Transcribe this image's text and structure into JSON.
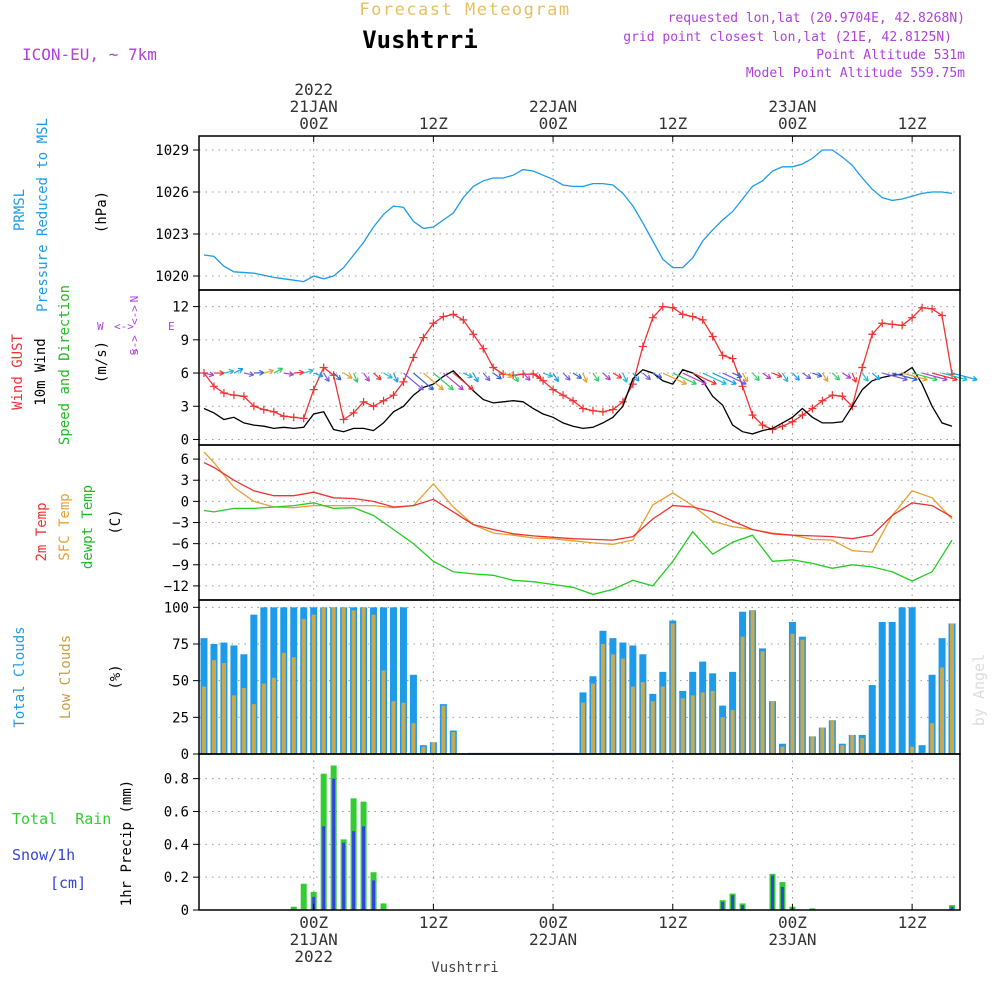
{
  "header": {
    "title": "Forecast Meteogram",
    "location": "Vushtrri",
    "model": "ICON-EU, ~ 7km",
    "requested": "requested lon,lat (20.9704E, 42.8268N)",
    "grid_point": "grid point closest lon,lat (21E, 42.8125N)",
    "point_altitude": "Point Altitude 531m",
    "model_altitude": "Model Point Altitude 559.75m",
    "footer_location": "Vushtrri",
    "watermark": "by Angel"
  },
  "time_axis": {
    "top": [
      {
        "hour": 0,
        "lines": [
          "2022",
          "21JAN",
          "00Z"
        ]
      },
      {
        "hour": 12,
        "lines": [
          "12Z"
        ]
      },
      {
        "hour": 24,
        "lines": [
          "22JAN",
          "00Z"
        ]
      },
      {
        "hour": 36,
        "lines": [
          "12Z"
        ]
      },
      {
        "hour": 48,
        "lines": [
          "23JAN",
          "00Z"
        ]
      },
      {
        "hour": 60,
        "lines": [
          "12Z"
        ]
      }
    ],
    "bottom": [
      {
        "hour": 0,
        "lines": [
          "00Z",
          "21JAN",
          "2022"
        ]
      },
      {
        "hour": 12,
        "lines": [
          "12Z"
        ]
      },
      {
        "hour": 24,
        "lines": [
          "00Z",
          "22JAN"
        ]
      },
      {
        "hour": 36,
        "lines": [
          "12Z"
        ]
      },
      {
        "hour": 48,
        "lines": [
          "00Z",
          "23JAN"
        ]
      },
      {
        "hour": 60,
        "lines": [
          "12Z"
        ]
      }
    ],
    "range_hours": [
      -11.5,
      64.8
    ]
  },
  "colors": {
    "prmsl": "#1e9be8",
    "gust": "#ee3333",
    "wind": "#000000",
    "temp2m": "#ee3333",
    "sfc": "#e8a030",
    "dew": "#22cc22",
    "total_cloud": "#1e9be8",
    "low_cloud": "#c8a850",
    "rain": "#33cc33",
    "snow": "#3344dd",
    "purple": "#b040e0",
    "title_gold": "#e8c060"
  },
  "panels": {
    "pressure": {
      "labels": [
        "PRMSL",
        "Pressure Reduced to MSL"
      ],
      "unit": "(hPa)"
    },
    "wind": {
      "labels": [
        "Wind GUST",
        "10m Wind",
        "Speed and Direction"
      ],
      "unit": "(m/s)",
      "compass": {
        "n": "N",
        "s": "S",
        "e": "E",
        "w": "W"
      }
    },
    "temp": {
      "labels": [
        "2m Temp",
        "SFC Temp",
        "dewpt Temp"
      ],
      "unit": "(C)"
    },
    "clouds": {
      "labels": [
        "Total Clouds",
        "Low Clouds"
      ],
      "unit": "(%)"
    },
    "precip": {
      "labels": [
        "Total  Rain",
        "Snow/1h",
        "[cm]"
      ],
      "unit": "1hr Precip (mm)"
    }
  },
  "chart_data": [
    {
      "type": "line",
      "title": "PRMSL",
      "ylabel": "(hPa)",
      "ylim": [
        1019,
        1030
      ],
      "yticks": [
        1020,
        1023,
        1026,
        1029
      ],
      "x_hours": [
        -11,
        -10,
        -9,
        -8,
        -6,
        -4,
        -3,
        -2,
        -1,
        0,
        1,
        2,
        3,
        4,
        5,
        6,
        7,
        8,
        9,
        10,
        11,
        12,
        13,
        14,
        15,
        16,
        17,
        18,
        19,
        20,
        21,
        22,
        23,
        24,
        25,
        26,
        27,
        28,
        29,
        30,
        31,
        32,
        33,
        34,
        35,
        36,
        37,
        38,
        39,
        40,
        41,
        42,
        43,
        44,
        45,
        46,
        47,
        48,
        49,
        50,
        51,
        52,
        53,
        54,
        55,
        56,
        57,
        58,
        59,
        60,
        61,
        62,
        63,
        64
      ],
      "series": [
        {
          "name": "PRMSL",
          "values": [
            1021.5,
            1021.4,
            1020.7,
            1020.3,
            1020.2,
            1019.9,
            1019.8,
            1019.7,
            1019.6,
            1020.0,
            1019.8,
            1020.0,
            1020.6,
            1021.5,
            1022.4,
            1023.5,
            1024.4,
            1025.0,
            1024.9,
            1023.9,
            1023.4,
            1023.5,
            1024.0,
            1024.5,
            1025.6,
            1026.4,
            1026.8,
            1027.0,
            1027.0,
            1027.2,
            1027.6,
            1027.5,
            1027.2,
            1026.9,
            1026.5,
            1026.4,
            1026.4,
            1026.6,
            1026.6,
            1026.5,
            1025.9,
            1025.0,
            1023.8,
            1022.5,
            1021.2,
            1020.6,
            1020.6,
            1021.3,
            1022.5,
            1023.3,
            1024.0,
            1024.6,
            1025.5,
            1026.4,
            1026.8,
            1027.5,
            1027.8,
            1027.8,
            1028.0,
            1028.4,
            1029.0,
            1029.0,
            1028.5,
            1027.9,
            1027.0,
            1026.2,
            1025.6,
            1025.4,
            1025.5,
            1025.7,
            1025.9,
            1026.0,
            1026.0,
            1025.9
          ]
        }
      ]
    },
    {
      "type": "line",
      "title": "Wind",
      "ylabel": "(m/s)",
      "ylim": [
        -0.5,
        13.5
      ],
      "yticks": [
        0,
        3,
        6,
        9,
        12
      ],
      "x_hours": [
        -11,
        -10,
        -9,
        -8,
        -7,
        -6,
        -5,
        -4,
        -3,
        -2,
        -1,
        0,
        1,
        2,
        3,
        4,
        5,
        6,
        7,
        8,
        9,
        10,
        11,
        12,
        13,
        14,
        15,
        16,
        17,
        18,
        19,
        20,
        21,
        22,
        23,
        24,
        25,
        26,
        27,
        28,
        29,
        30,
        31,
        32,
        33,
        34,
        35,
        36,
        37,
        38,
        39,
        40,
        41,
        42,
        43,
        44,
        45,
        46,
        47,
        48,
        49,
        50,
        51,
        52,
        53,
        54,
        55,
        56,
        57,
        58,
        59,
        60,
        61,
        62,
        63,
        64
      ],
      "series": [
        {
          "name": "Wind GUST",
          "values": [
            6.0,
            4.8,
            4.2,
            4.0,
            3.9,
            3.0,
            2.7,
            2.5,
            2.1,
            2.0,
            1.9,
            4.5,
            6.5,
            5.8,
            1.8,
            2.4,
            3.4,
            3.0,
            3.5,
            4.0,
            5.2,
            7.4,
            9.2,
            10.5,
            11.1,
            11.3,
            10.8,
            9.5,
            8.2,
            6.5,
            5.9,
            5.8,
            5.9,
            5.9,
            5.3,
            4.5,
            4.0,
            3.5,
            2.8,
            2.6,
            2.5,
            2.7,
            3.4,
            5.0,
            8.4,
            11.0,
            12.0,
            11.9,
            11.3,
            11.1,
            10.8,
            9.3,
            7.6,
            7.3,
            4.8,
            2.2,
            1.3,
            0.9,
            1.2,
            1.6,
            2.2,
            2.8,
            3.5,
            4.0,
            3.9,
            3.0,
            6.5,
            9.5,
            10.5,
            10.4,
            10.3,
            11.0,
            11.9,
            11.8,
            11.2,
            5.9
          ]
        },
        {
          "name": "10m Wind",
          "values": [
            2.8,
            2.4,
            1.8,
            2.0,
            1.5,
            1.3,
            1.2,
            1.0,
            1.1,
            1.0,
            1.1,
            2.3,
            2.5,
            0.9,
            0.7,
            1.0,
            1.0,
            0.8,
            1.5,
            2.5,
            3.0,
            4.0,
            4.7,
            5.0,
            5.7,
            6.2,
            5.3,
            4.4,
            3.6,
            3.3,
            3.4,
            3.5,
            3.4,
            2.8,
            2.3,
            2.0,
            1.5,
            1.2,
            1.0,
            1.1,
            1.5,
            2.0,
            3.0,
            5.5,
            6.3,
            6.0,
            5.3,
            5.0,
            6.3,
            6.0,
            5.3,
            3.9,
            3.1,
            1.3,
            0.7,
            0.5,
            0.8,
            1.0,
            1.5,
            2.0,
            2.8,
            2.0,
            1.5,
            1.5,
            1.6,
            3.0,
            4.5,
            5.3,
            5.6,
            5.8,
            5.9,
            6.5,
            5.0,
            3.0,
            1.5,
            1.2
          ]
        }
      ]
    },
    {
      "type": "line",
      "title": "Temperature",
      "ylabel": "(C)",
      "ylim": [
        -14,
        8
      ],
      "yticks": [
        -12,
        -9,
        -6,
        -3,
        0,
        3,
        6
      ],
      "x_hours": [
        -11,
        -10,
        -8,
        -6,
        -4,
        -2,
        0,
        2,
        4,
        6,
        8,
        10,
        12,
        14,
        16,
        18,
        20,
        22,
        24,
        26,
        28,
        30,
        32,
        34,
        36,
        38,
        40,
        42,
        44,
        46,
        48,
        50,
        52,
        54,
        56,
        58,
        60,
        62,
        64
      ],
      "series": [
        {
          "name": "2m Temp",
          "values": [
            5.5,
            4.8,
            3.0,
            1.5,
            0.8,
            0.8,
            1.3,
            0.5,
            0.4,
            0.0,
            -0.8,
            -0.6,
            0.3,
            -1.5,
            -3.3,
            -4.0,
            -4.6,
            -4.9,
            -5.1,
            -5.3,
            -5.4,
            -5.5,
            -5.0,
            -2.5,
            -0.6,
            -0.8,
            -1.5,
            -2.8,
            -4.0,
            -4.6,
            -4.8,
            -4.9,
            -5.0,
            -5.3,
            -4.8,
            -2.0,
            -0.2,
            -0.6,
            -2.2
          ]
        },
        {
          "name": "SFC Temp",
          "values": [
            7.0,
            5.5,
            2.0,
            0.0,
            -0.8,
            -0.9,
            -0.6,
            -0.6,
            -0.6,
            -0.6,
            -0.9,
            -0.6,
            2.5,
            -0.8,
            -3.3,
            -4.5,
            -4.8,
            -5.2,
            -5.3,
            -5.6,
            -5.9,
            -6.1,
            -5.5,
            -0.5,
            1.2,
            -0.6,
            -2.8,
            -3.6,
            -4.0,
            -4.5,
            -4.8,
            -5.4,
            -5.5,
            -7.0,
            -7.2,
            -2.0,
            1.5,
            0.5,
            -2.5
          ]
        },
        {
          "name": "dewpt Temp",
          "values": [
            -1.3,
            -1.5,
            -1.0,
            -1.0,
            -0.8,
            -0.6,
            -0.2,
            -1.0,
            -0.9,
            -2.0,
            -4.0,
            -6.0,
            -8.5,
            -10.0,
            -10.3,
            -10.5,
            -11.2,
            -11.4,
            -11.8,
            -12.2,
            -13.2,
            -12.5,
            -11.2,
            -12.0,
            -8.5,
            -4.3,
            -7.5,
            -5.8,
            -4.8,
            -8.5,
            -8.3,
            -8.8,
            -9.5,
            -9.0,
            -9.3,
            -10.0,
            -11.3,
            -10.0,
            -5.5
          ]
        }
      ]
    },
    {
      "type": "bar",
      "title": "Clouds",
      "ylabel": "(%)",
      "ylim": [
        0,
        105
      ],
      "yticks": [
        0,
        25,
        50,
        75,
        100
      ],
      "x_hours": [
        -11,
        -10,
        -9,
        -8,
        -7,
        -6,
        -5,
        -4,
        -3,
        -2,
        -1,
        0,
        1,
        2,
        3,
        4,
        5,
        6,
        7,
        8,
        9,
        10,
        11,
        12,
        13,
        14,
        15,
        16,
        17,
        18,
        19,
        20,
        21,
        22,
        23,
        24,
        25,
        26,
        27,
        28,
        29,
        30,
        31,
        32,
        33,
        34,
        35,
        36,
        37,
        38,
        39,
        40,
        41,
        42,
        43,
        44,
        45,
        46,
        47,
        48,
        49,
        50,
        51,
        52,
        53,
        54,
        55,
        56,
        57,
        58,
        59,
        60,
        61,
        62,
        63,
        64
      ],
      "series": [
        {
          "name": "Total Clouds",
          "values": [
            79,
            75,
            76,
            74,
            68,
            95,
            100,
            100,
            100,
            100,
            100,
            100,
            100,
            100,
            100,
            100,
            100,
            100,
            100,
            100,
            100,
            54,
            6,
            8,
            34,
            16,
            0,
            0,
            0,
            0,
            0,
            0,
            0,
            0,
            0,
            0,
            0,
            0,
            42,
            53,
            84,
            79,
            76,
            74,
            68,
            41,
            56,
            91,
            43,
            56,
            63,
            55,
            33,
            56,
            97,
            98,
            72,
            36,
            7,
            90,
            80,
            12,
            18,
            23,
            7,
            13,
            13,
            47,
            90,
            90,
            100,
            100,
            6,
            54,
            79,
            89
          ]
        },
        {
          "name": "Low Clouds",
          "values": [
            46,
            64,
            62,
            40,
            45,
            34,
            48,
            52,
            69,
            66,
            92,
            95,
            100,
            100,
            100,
            98,
            100,
            95,
            57,
            36,
            35,
            21,
            5,
            8,
            33,
            15,
            0,
            0,
            0,
            0,
            0,
            0,
            0,
            0,
            0,
            0,
            0,
            0,
            35,
            48,
            75,
            68,
            65,
            46,
            49,
            36,
            46,
            89,
            38,
            40,
            42,
            43,
            25,
            30,
            80,
            98,
            70,
            36,
            5,
            82,
            78,
            12,
            18,
            23,
            6,
            13,
            11,
            0,
            0,
            0,
            0,
            5,
            0,
            21,
            59,
            89
          ]
        }
      ]
    },
    {
      "type": "bar",
      "title": "1hr Precip",
      "ylabel": "1hr Precip (mm)",
      "ylim": [
        0,
        0.95
      ],
      "yticks": [
        0,
        0.2,
        0.4,
        0.6,
        0.8
      ],
      "x_hours": [
        -2,
        -1,
        0,
        1,
        2,
        3,
        4,
        5,
        6,
        7,
        8,
        41,
        42,
        43,
        46,
        47,
        48,
        50,
        64
      ],
      "series": [
        {
          "name": "Total Rain",
          "values": [
            0.02,
            0.16,
            0.11,
            0.83,
            0.88,
            0.43,
            0.68,
            0.66,
            0.23,
            0.04,
            0,
            0.06,
            0.1,
            0.04,
            0.22,
            0.17,
            0.02,
            0.01,
            0.03
          ]
        },
        {
          "name": "Snow/1h",
          "values": [
            0,
            0,
            0.08,
            0.51,
            0.8,
            0.41,
            0.48,
            0.51,
            0.18,
            0,
            0,
            0.05,
            0.09,
            0.03,
            0.21,
            0.14,
            0.01,
            0,
            0.02
          ]
        }
      ]
    }
  ]
}
